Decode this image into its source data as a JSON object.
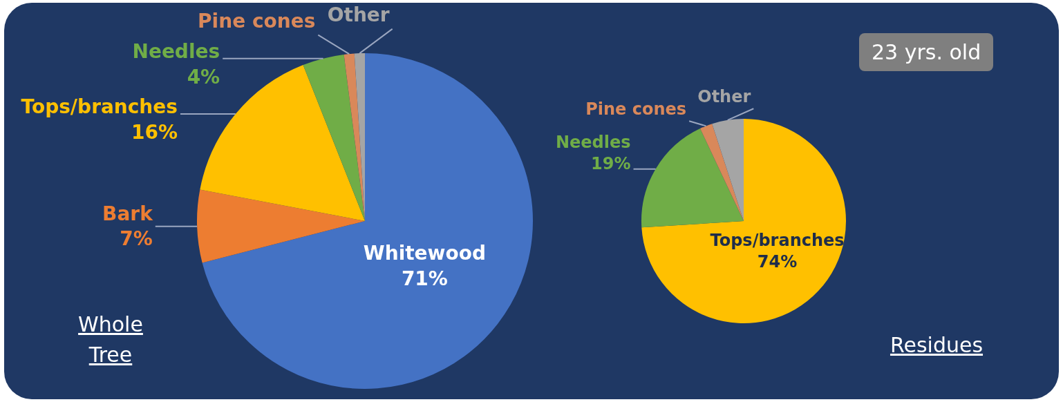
{
  "chart_data": [
    {
      "type": "pie",
      "title": "Whole Tree",
      "categories": [
        "Whitewood",
        "Bark",
        "Tops/branches",
        "Needles",
        "Pine cones",
        "Other"
      ],
      "values": [
        71,
        7,
        16,
        4,
        1,
        1
      ],
      "value_labels": [
        "71%",
        "7%",
        "16%",
        "4%",
        null,
        null
      ],
      "colors": [
        "#4472c4",
        "#ed7d31",
        "#ffc000",
        "#70ad47",
        "#d9885a",
        "#a5a5a5"
      ],
      "legend": false
    },
    {
      "type": "pie",
      "title": "Residues",
      "annotations": [
        "23 yrs. old"
      ],
      "categories": [
        "Tops/branches",
        "Needles",
        "Pine cones",
        "Other"
      ],
      "values": [
        74,
        19,
        2,
        5
      ],
      "value_labels": [
        "74%",
        "19%",
        null,
        null
      ],
      "colors": [
        "#ffc000",
        "#70ad47",
        "#d9885a",
        "#a5a5a5"
      ],
      "legend": false
    }
  ]
}
